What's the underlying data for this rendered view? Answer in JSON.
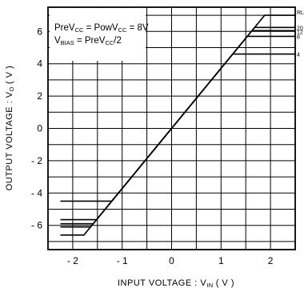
{
  "chart_data": {
    "type": "line",
    "title": "",
    "xlabel": "INPUT VOLTAGE : V",
    "xlabel_sub": "IN",
    "xlabel_unit": "( V )",
    "ylabel": "OUTPUT VOLTAGE : V",
    "ylabel_sub": "O",
    "ylabel_unit": "( V )",
    "xlim": [
      -2.5,
      2.5
    ],
    "ylim": [
      -7.5,
      7.5
    ],
    "x_ticks": [
      {
        "value": -2,
        "label": "- 2"
      },
      {
        "value": -1,
        "label": "- 1"
      },
      {
        "value": 0,
        "label": "0"
      },
      {
        "value": 1,
        "label": "1"
      },
      {
        "value": 2,
        "label": "2"
      }
    ],
    "y_ticks": [
      {
        "value": 6,
        "label": "6"
      },
      {
        "value": 4,
        "label": "4"
      },
      {
        "value": 2,
        "label": "2"
      },
      {
        "value": 0,
        "label": "0"
      },
      {
        "value": -2,
        "label": "- 2"
      },
      {
        "value": -4,
        "label": "- 4"
      },
      {
        "value": -6,
        "label": "- 6"
      }
    ],
    "grid": true,
    "gain": 3.72,
    "legend_box": {
      "line1_parts": [
        "PreV",
        "CC",
        " = PowV",
        "CC",
        " = 8V"
      ],
      "line2_parts": [
        "V",
        "BIAS",
        " = PreV",
        "CC",
        "/2"
      ]
    },
    "series_header": "RL",
    "series": [
      {
        "name": "",
        "label": "",
        "pos_sat": 7.0,
        "neg_sat": -6.6
      },
      {
        "name": "20",
        "label": "20",
        "pos_sat": 6.25,
        "neg_sat": -6.1
      },
      {
        "name": "12",
        "label": "12",
        "pos_sat": 6.05,
        "neg_sat": -5.9
      },
      {
        "name": "8",
        "label": "8",
        "pos_sat": 5.7,
        "neg_sat": -5.65
      },
      {
        "name": "4",
        "label": "4",
        "pos_sat": 4.6,
        "neg_sat": -4.5
      }
    ]
  }
}
